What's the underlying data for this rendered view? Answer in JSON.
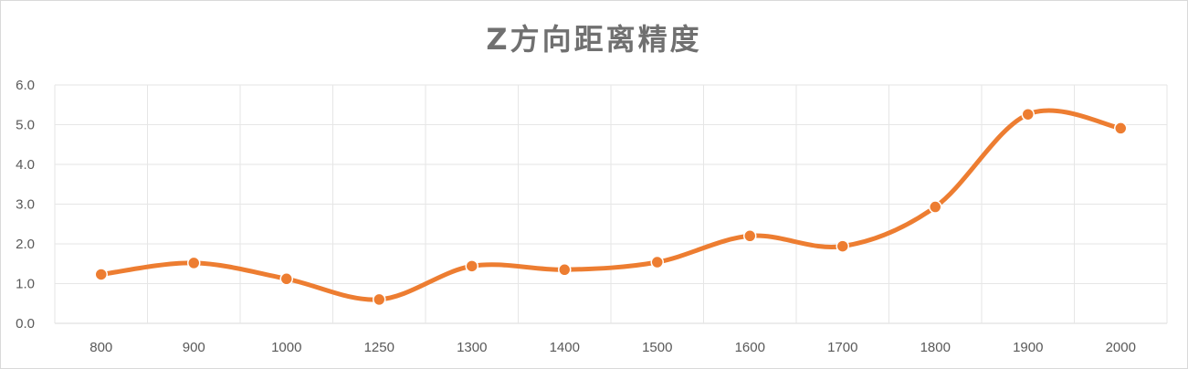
{
  "chart_data": {
    "type": "line",
    "title": "Z方向距离精度",
    "categories": [
      "800",
      "900",
      "1000",
      "1250",
      "1300",
      "1400",
      "1500",
      "1600",
      "1700",
      "1800",
      "1900",
      "2000"
    ],
    "series": [
      {
        "values": [
          1.23,
          1.52,
          1.12,
          0.6,
          1.44,
          1.35,
          1.54,
          2.2,
          1.94,
          2.93,
          5.26,
          4.91
        ],
        "color": "#ED7D31",
        "smooth": true,
        "markers": true
      }
    ],
    "y_ticks": [
      "0.0",
      "1.0",
      "2.0",
      "3.0",
      "4.0",
      "5.0",
      "6.0"
    ],
    "ylim": [
      0,
      6
    ],
    "grid": true,
    "legend": "none"
  }
}
